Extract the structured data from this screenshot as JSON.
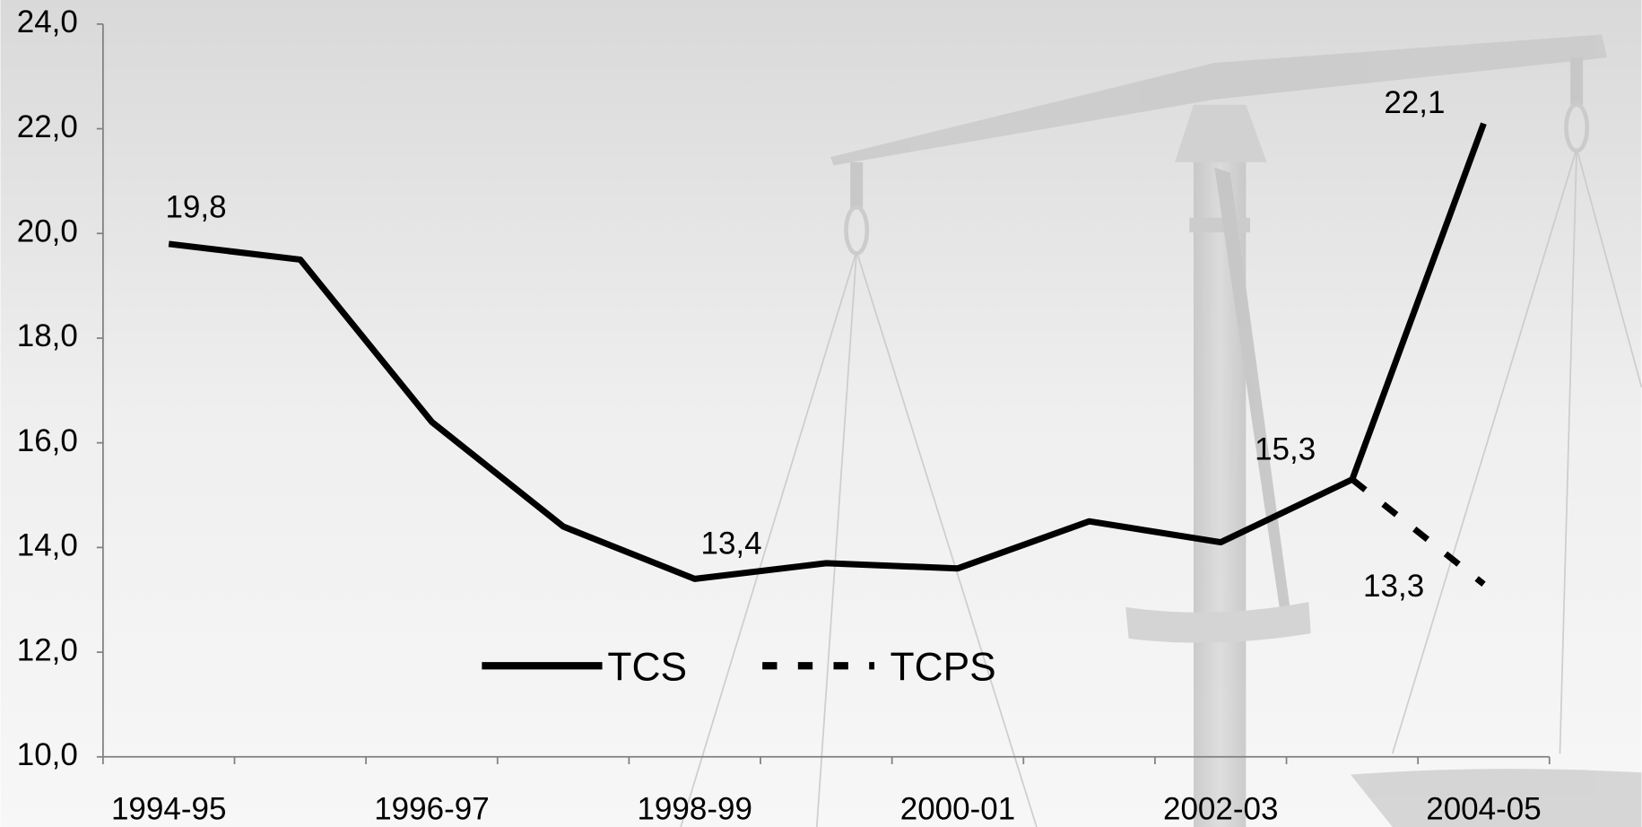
{
  "chart_data": {
    "type": "line",
    "categories": [
      "1994-95",
      null,
      "1996-97",
      null,
      "1998-99",
      null,
      "2000-01",
      null,
      "2002-03",
      null,
      "2004-05"
    ],
    "series": [
      {
        "name": "TCS",
        "color": "#000000",
        "dash": false,
        "values": [
          19.8,
          19.5,
          16.4,
          14.4,
          13.4,
          13.7,
          13.6,
          14.5,
          14.1,
          15.3,
          22.1
        ],
        "value_labels": [
          "19,8",
          null,
          null,
          null,
          "13,4",
          null,
          null,
          null,
          null,
          "15,3",
          "22,1"
        ]
      },
      {
        "name": "TCPS",
        "color": "#000000",
        "dash": true,
        "values": [
          null,
          null,
          null,
          null,
          null,
          null,
          null,
          null,
          null,
          15.3,
          13.3
        ],
        "value_labels": [
          null,
          null,
          null,
          null,
          null,
          null,
          null,
          null,
          null,
          null,
          "13,3"
        ]
      }
    ],
    "ylim": [
      10,
      24
    ],
    "yticks": [
      {
        "value": 10,
        "label": "10,0"
      },
      {
        "value": 12,
        "label": "12,0"
      },
      {
        "value": 14,
        "label": "14,0"
      },
      {
        "value": 16,
        "label": "16,0"
      },
      {
        "value": 18,
        "label": "18,0"
      },
      {
        "value": 20,
        "label": "20,0"
      },
      {
        "value": 22,
        "label": "22,0"
      },
      {
        "value": 24,
        "label": "24,0"
      }
    ],
    "grid": false
  }
}
